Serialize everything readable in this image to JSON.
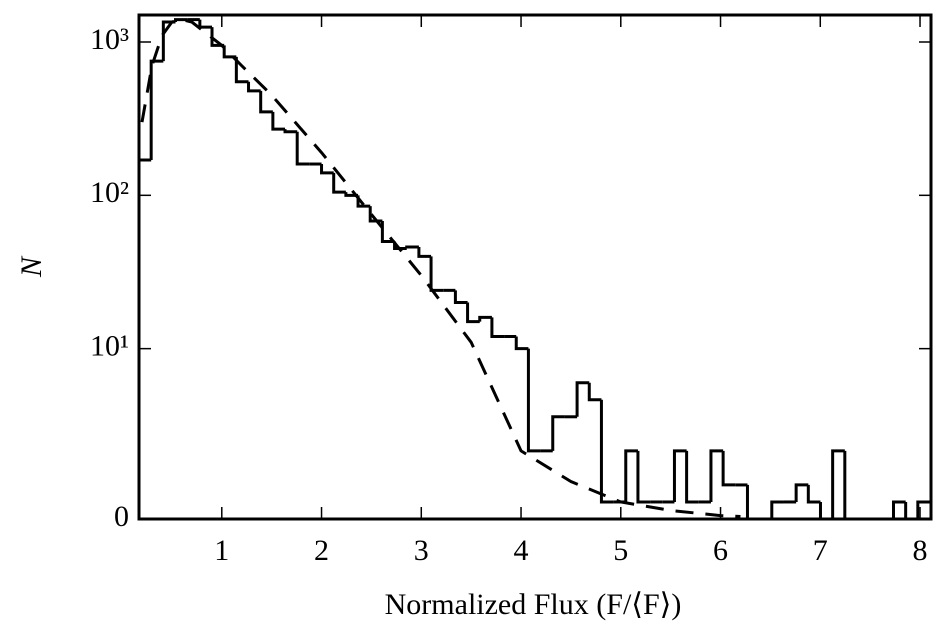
{
  "chart_data": {
    "type": "histogram",
    "xlabel": "Normalized Flux (F/⟨F⟩)",
    "ylabel": "N",
    "bins": [
      0.17,
      0.292,
      0.414,
      0.536,
      0.658,
      0.78,
      0.902,
      1.024,
      1.146,
      1.268,
      1.39,
      1.512,
      1.634,
      1.756,
      1.878,
      2.0,
      2.122,
      2.244,
      2.366,
      2.488,
      2.61,
      2.732,
      2.854,
      2.976,
      3.098,
      3.22,
      3.342,
      3.464,
      3.586,
      3.708,
      3.83,
      3.952,
      4.074,
      4.196,
      4.318,
      4.44,
      4.562,
      4.684,
      4.806,
      4.928,
      5.05,
      5.172,
      5.294,
      5.416,
      5.538,
      5.66,
      5.782,
      5.904,
      6.026,
      6.148,
      6.27,
      6.392,
      6.514,
      6.636,
      6.758,
      6.88,
      7.002,
      7.124,
      7.246,
      7.368,
      7.49,
      7.612,
      7.734,
      7.856,
      7.978,
      8.1
    ],
    "values": [
      170,
      750,
      1350,
      1400,
      1400,
      1250,
      950,
      800,
      550,
      480,
      350,
      270,
      260,
      160,
      160,
      140,
      105,
      100,
      85,
      68,
      50,
      45,
      46,
      40,
      24,
      24,
      20,
      15,
      16,
      12,
      12,
      10,
      4,
      4,
      6,
      6,
      8,
      7,
      1,
      1,
      4,
      1,
      1,
      1,
      4,
      1,
      1,
      4,
      2,
      2,
      0,
      0,
      1,
      1,
      2,
      1,
      0,
      4,
      0,
      0,
      0,
      0,
      1,
      0,
      1
    ],
    "color": "#000000",
    "overlay": {
      "type": "line",
      "linestyle": "dashed",
      "color": "#000000",
      "x": [
        0.2,
        0.3,
        0.4,
        0.5,
        0.6,
        0.7,
        0.8,
        1.0,
        1.2,
        1.5,
        2.0,
        2.5,
        3.0,
        3.5,
        4.0,
        4.5,
        5.0,
        5.5,
        6.0,
        6.2
      ],
      "values": [
        300,
        700,
        1100,
        1350,
        1400,
        1350,
        1200,
        950,
        700,
        450,
        190,
        75,
        30,
        11,
        4,
        2.2,
        1,
        0.5,
        0.2,
        0.15
      ]
    },
    "xlim": [
      0.17,
      8.11
    ],
    "xticks": [
      1,
      2,
      3,
      4,
      5,
      6,
      7,
      8
    ],
    "yscale": "symlog",
    "linthresh": 10,
    "ylim": [
      0,
      1500
    ],
    "yticks": [
      0,
      {
        "value": 10,
        "label": "10¹"
      },
      {
        "value": 100,
        "label": "10²"
      },
      {
        "value": 1000,
        "label": "10³"
      }
    ],
    "grid": false
  }
}
